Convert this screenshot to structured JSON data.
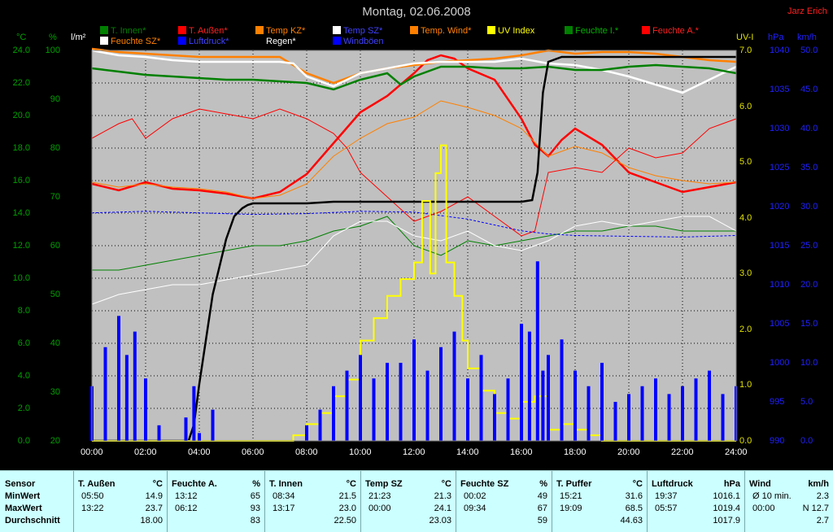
{
  "title": "Montag, 02.06.2008",
  "author": "Jarz Erich",
  "colors": {
    "t_innen": "#008000",
    "t_aussen": "#ff0000",
    "temp_kz": "#ff8000",
    "temp_sz": "#ffffff",
    "temp_wind": "#ff8000",
    "uv_index": "#ffff00",
    "feuchte_i": "#008000",
    "feuchte_a": "#ff0000",
    "feuchte_sz": "#ffffff",
    "luftdruck": "#0000ff",
    "regen": "#000000",
    "windboeen": "#0000ff"
  },
  "legend": [
    {
      "label": "T. Innen*",
      "color": "#008000",
      "text_color": "#008000"
    },
    {
      "label": "T. Außen*",
      "color": "#ff0000",
      "text_color": "#ff2020"
    },
    {
      "label": "Temp KZ*",
      "color": "#ff8000",
      "text_color": "#ff8000"
    },
    {
      "label": "Temp SZ*",
      "color": "#ffffff",
      "text_color": "#4040ff"
    },
    {
      "label": "Temp. Wind*",
      "color": "#ff8000",
      "text_color": "#ff8000"
    },
    {
      "label": "UV Index",
      "color": "#ffff00",
      "text_color": "#ffff00"
    },
    {
      "label": "Feuchte I.*",
      "color": "#008000",
      "text_color": "#00b000"
    },
    {
      "label": "Feuchte A.*",
      "color": "#ff0000",
      "text_color": "#ff2020"
    },
    {
      "label": "Feuchte SZ*",
      "color": "#ffffff",
      "text_color": "#ff8000"
    },
    {
      "label": "Luftdruck*",
      "color": "#0000ff",
      "text_color": "#4040ff"
    },
    {
      "label": "Regen*",
      "color": "#000000",
      "text_color": "#ffffff"
    },
    {
      "label": "Windböen",
      "color": "#0000ff",
      "text_color": "#4040ff"
    }
  ],
  "axes": {
    "temp": {
      "unit": "°C",
      "min": 0,
      "max": 24,
      "ticks": [
        "0.0",
        "2.0",
        "4.0",
        "6.0",
        "8.0",
        "10.0",
        "12.0",
        "14.0",
        "16.0",
        "18.0",
        "20.0",
        "22.0",
        "24.0"
      ]
    },
    "humidity": {
      "unit": "%",
      "min": 20,
      "max": 100,
      "ticks": [
        "20",
        "30",
        "40",
        "50",
        "60",
        "70",
        "80",
        "90",
        "100"
      ]
    },
    "rain": {
      "unit": "l/m²",
      "ticks": [
        "0.0",
        "2.0",
        "4.0",
        "6.0",
        "8.0",
        "10.0",
        "12.0",
        "14.0",
        "16.0",
        "18.0",
        "20.0",
        "22.0",
        "24.0"
      ]
    },
    "uv": {
      "unit": "UV-I",
      "min": 0,
      "max": 7,
      "ticks": [
        "0.0",
        "1.0",
        "2.0",
        "3.0",
        "4.0",
        "5.0",
        "6.0",
        "7.0"
      ]
    },
    "pressure": {
      "unit": "hPa",
      "min": 990,
      "max": 1040,
      "ticks": [
        "990",
        "995",
        "1000",
        "1005",
        "1010",
        "1015",
        "1020",
        "1025",
        "1030",
        "1035",
        "1040"
      ]
    },
    "wind": {
      "unit": "km/h",
      "min": 0,
      "max": 50,
      "ticks": [
        "0.0",
        "5.0",
        "10.0",
        "15.0",
        "20.0",
        "25.0",
        "30.0",
        "35.0",
        "40.0",
        "45.0",
        "50.0"
      ]
    },
    "time": {
      "ticks": [
        "00:00",
        "02:00",
        "04:00",
        "06:00",
        "08:00",
        "10:00",
        "12:00",
        "14:00",
        "16:00",
        "18:00",
        "20:00",
        "22:00",
        "24:00"
      ]
    }
  },
  "chart_data": {
    "type": "line",
    "title": "Montag, 02.06.2008",
    "x_unit": "hour of day",
    "xlim": [
      0,
      24
    ],
    "series": [
      {
        "name": "T. Außen*",
        "axis": "temp",
        "x": [
          0,
          1,
          2,
          3,
          4,
          5,
          6,
          7,
          8,
          9,
          10,
          11,
          12,
          12.5,
          13,
          13.5,
          14,
          15,
          16,
          16.5,
          17,
          17.5,
          18,
          19,
          20,
          21,
          22,
          23,
          24
        ],
        "values": [
          15.8,
          15.4,
          15.9,
          15.5,
          15.4,
          15.2,
          14.9,
          15.3,
          16.4,
          18.3,
          20.2,
          21.2,
          22.6,
          23.4,
          23.7,
          23.5,
          22.9,
          22.2,
          19.8,
          18.2,
          17.5,
          18.5,
          19.2,
          18.2,
          16.5,
          15.9,
          15.3,
          15.6,
          15.9
        ]
      },
      {
        "name": "Temp KZ*",
        "axis": "temp",
        "x": [
          0,
          1,
          2,
          3,
          4,
          5,
          6,
          7,
          8,
          9,
          10,
          11,
          12,
          13,
          14,
          15,
          16,
          17,
          18,
          19,
          20,
          21,
          22,
          23,
          24
        ],
        "values": [
          24.1,
          23.9,
          23.8,
          23.7,
          23.6,
          23.6,
          23.6,
          23.6,
          22.6,
          22.0,
          22.6,
          22.9,
          23.1,
          23.3,
          23.4,
          23.5,
          23.7,
          24.0,
          23.8,
          23.9,
          23.9,
          23.8,
          23.6,
          23.4,
          23.3
        ]
      },
      {
        "name": "Temp SZ*",
        "axis": "temp",
        "x": [
          0,
          1,
          2,
          3,
          4,
          5,
          6,
          7,
          7.5,
          8,
          9,
          10,
          11,
          12,
          13,
          14,
          15,
          16,
          17,
          18,
          19,
          20,
          21,
          22,
          23,
          24
        ],
        "values": [
          24.0,
          23.7,
          23.6,
          23.4,
          23.3,
          23.3,
          23.3,
          23.3,
          23.2,
          22.4,
          21.8,
          22.6,
          22.9,
          23.2,
          23.3,
          23.3,
          23.3,
          23.5,
          23.2,
          23.1,
          22.8,
          22.4,
          21.9,
          21.4,
          22.2,
          23.0
        ]
      },
      {
        "name": "T. Innen*",
        "axis": "temp",
        "x": [
          0,
          1,
          2,
          3,
          4,
          5,
          6,
          7,
          8,
          9,
          10,
          11,
          11.5,
          12,
          13,
          14,
          15,
          16,
          17,
          18,
          19,
          20,
          21,
          22,
          23,
          24
        ],
        "values": [
          22.9,
          22.7,
          22.5,
          22.4,
          22.3,
          22.2,
          22.2,
          22.1,
          22.0,
          21.6,
          22.2,
          22.6,
          21.9,
          22.4,
          23.0,
          23.0,
          22.9,
          22.9,
          23.0,
          22.8,
          22.8,
          23.0,
          23.1,
          23.0,
          22.9,
          22.6
        ]
      },
      {
        "name": "Temp. Wind*",
        "axis": "temp",
        "x": [
          0,
          1,
          2,
          3,
          4,
          5,
          6,
          7,
          8,
          9,
          10,
          11,
          12,
          13,
          14,
          15,
          16,
          17,
          18,
          19,
          20,
          21,
          22,
          23,
          24
        ],
        "values": [
          15.9,
          15.6,
          15.8,
          15.6,
          15.5,
          15.3,
          14.9,
          15.1,
          15.8,
          17.5,
          18.6,
          19.5,
          19.9,
          20.9,
          20.5,
          20.0,
          19.2,
          17.5,
          18.1,
          17.7,
          16.8,
          16.3,
          16.0,
          15.8,
          15.9
        ]
      },
      {
        "name": "Feuchte A.*",
        "axis": "humidity",
        "x": [
          0,
          1,
          1.5,
          2,
          3,
          4,
          5,
          6,
          7,
          8,
          9,
          9.5,
          10,
          11,
          12,
          13,
          14,
          15,
          16,
          16.5,
          17,
          18,
          19,
          20,
          21,
          22,
          23,
          24
        ],
        "values": [
          82,
          85,
          86,
          82,
          86,
          88,
          87,
          86,
          88,
          86,
          83,
          80,
          75,
          70,
          65,
          67,
          70,
          66,
          62,
          63,
          75,
          76,
          75,
          80,
          78,
          79,
          84,
          86
        ]
      },
      {
        "name": "Feuchte I.*",
        "axis": "humidity",
        "x": [
          0,
          1,
          2,
          3,
          4,
          5,
          6,
          7,
          8,
          9,
          10,
          11,
          12,
          13,
          14,
          15,
          16,
          17,
          18,
          19,
          20,
          21,
          22,
          23,
          24
        ],
        "values": [
          55,
          55,
          56,
          57,
          58,
          59,
          60,
          60,
          61,
          63,
          64,
          66,
          60,
          58,
          61,
          60,
          61,
          62,
          63,
          63,
          64,
          64,
          63,
          63,
          63
        ]
      },
      {
        "name": "Feuchte SZ*",
        "axis": "humidity",
        "x": [
          0,
          1,
          2,
          3,
          4,
          5,
          6,
          7,
          8,
          9,
          10,
          11,
          12,
          13,
          14,
          15,
          16,
          17,
          18,
          19,
          20,
          21,
          22,
          23,
          24
        ],
        "values": [
          48,
          50,
          51,
          52,
          52,
          53,
          54,
          55,
          56,
          62,
          65,
          65,
          62,
          61,
          63,
          60,
          59,
          61,
          64,
          65,
          64,
          65,
          66,
          66,
          63
        ]
      },
      {
        "name": "Luftdruck*",
        "axis": "pressure",
        "x": [
          0,
          2,
          4,
          6,
          8,
          10,
          12,
          14,
          16,
          17,
          18,
          20,
          22,
          24
        ],
        "values": [
          1019.2,
          1019.4,
          1019.2,
          1019.0,
          1019.1,
          1019.4,
          1019.3,
          1018.4,
          1016.9,
          1016.5,
          1016.3,
          1016.2,
          1016.1,
          1016.3
        ]
      },
      {
        "name": "Regen*",
        "axis": "rain",
        "x": [
          0,
          3.6,
          3.8,
          4,
          4.5,
          5,
          5.3,
          5.6,
          5.8,
          6,
          7,
          8,
          9,
          10,
          11,
          12,
          13,
          14,
          15,
          16,
          16.4,
          16.6,
          16.8,
          17,
          17.5,
          18,
          24
        ],
        "values": [
          0,
          0,
          1.0,
          3.5,
          9.0,
          12.4,
          13.8,
          14.3,
          14.5,
          14.6,
          14.6,
          14.6,
          14.7,
          14.7,
          14.7,
          14.7,
          14.7,
          14.7,
          14.7,
          14.7,
          14.8,
          16.5,
          21.4,
          23.3,
          23.6,
          23.6,
          23.6
        ]
      },
      {
        "name": "UV Index",
        "axis": "uv",
        "x": [
          0,
          7,
          7.5,
          8,
          8.5,
          9,
          9.5,
          10,
          10.5,
          11,
          11.5,
          12,
          12.3,
          12.6,
          12.8,
          13,
          13.2,
          13.5,
          13.8,
          14,
          14.5,
          15,
          15.5,
          16,
          16.5,
          17,
          17.5,
          18,
          18.5,
          19,
          24
        ],
        "values": [
          0,
          0,
          0.1,
          0.3,
          0.5,
          0.8,
          1.1,
          1.8,
          2.2,
          2.6,
          2.9,
          3.2,
          4.3,
          3.0,
          4.8,
          5.3,
          3.2,
          2.6,
          1.8,
          1.3,
          0.9,
          0.5,
          0.4,
          0.7,
          0.8,
          0.2,
          0.3,
          0.2,
          0.1,
          0,
          0
        ]
      },
      {
        "name": "Windböen",
        "axis": "wind",
        "x": [
          0,
          0.5,
          1,
          1.3,
          1.6,
          2,
          2.5,
          3,
          3.5,
          3.8,
          4,
          4.5,
          5,
          6,
          7,
          8,
          8.5,
          9,
          9.5,
          10,
          10.5,
          11,
          11.5,
          12,
          12.5,
          13,
          13.5,
          14,
          14.5,
          15,
          15.5,
          16,
          16.3,
          16.6,
          16.8,
          17,
          17.5,
          18,
          18.5,
          19,
          19.5,
          20,
          20.5,
          21,
          21.5,
          22,
          22.5,
          23,
          23.5,
          24
        ],
        "values": [
          7,
          12,
          16,
          11,
          14,
          8,
          2,
          0,
          3,
          7,
          1,
          4,
          0,
          0,
          0,
          2,
          4,
          7,
          9,
          11,
          8,
          10,
          10,
          13,
          9,
          12,
          14,
          8,
          11,
          6,
          8,
          15,
          14,
          23,
          9,
          11,
          13,
          9,
          7,
          10,
          5,
          6,
          7,
          8,
          6,
          7,
          8,
          9,
          6,
          7
        ]
      }
    ]
  },
  "table": {
    "headers": [
      {
        "name": "Sensor",
        "unit": ""
      },
      {
        "name": "T. Außen",
        "unit": "°C"
      },
      {
        "name": "Feuchte A.",
        "unit": "%"
      },
      {
        "name": "T. Innen",
        "unit": "°C"
      },
      {
        "name": "Temp SZ",
        "unit": "°C"
      },
      {
        "name": "Feuchte SZ",
        "unit": "%"
      },
      {
        "name": "T. Puffer",
        "unit": "°C"
      },
      {
        "name": "Luftdruck",
        "unit": "hPa"
      },
      {
        "name": "Wind",
        "unit": "km/h"
      }
    ],
    "rows": [
      {
        "label": "MinWert",
        "cells": [
          [
            "05:50",
            "14.9"
          ],
          [
            "13:12",
            "65"
          ],
          [
            "08:34",
            "21.5"
          ],
          [
            "21:23",
            "21.3"
          ],
          [
            "00:02",
            "49"
          ],
          [
            "15:21",
            "31.6"
          ],
          [
            "19:37",
            "1016.1"
          ],
          [
            "Ø 10 min.",
            "2.3"
          ]
        ]
      },
      {
        "label": "MaxWert",
        "cells": [
          [
            "13:22",
            "23.7"
          ],
          [
            "06:12",
            "93"
          ],
          [
            "13:17",
            "23.0"
          ],
          [
            "00:00",
            "24.1"
          ],
          [
            "09:34",
            "67"
          ],
          [
            "19:09",
            "68.5"
          ],
          [
            "05:57",
            "1019.4"
          ],
          [
            "00:00",
            "N 12.7"
          ]
        ]
      },
      {
        "label": "Durchschnitt",
        "cells": [
          [
            "",
            "18.00"
          ],
          [
            "",
            "83"
          ],
          [
            "",
            "22.50"
          ],
          [
            "",
            "23.03"
          ],
          [
            "",
            "59"
          ],
          [
            "",
            "44.63"
          ],
          [
            "",
            "1017.9"
          ],
          [
            "",
            "2.7"
          ]
        ]
      }
    ]
  }
}
